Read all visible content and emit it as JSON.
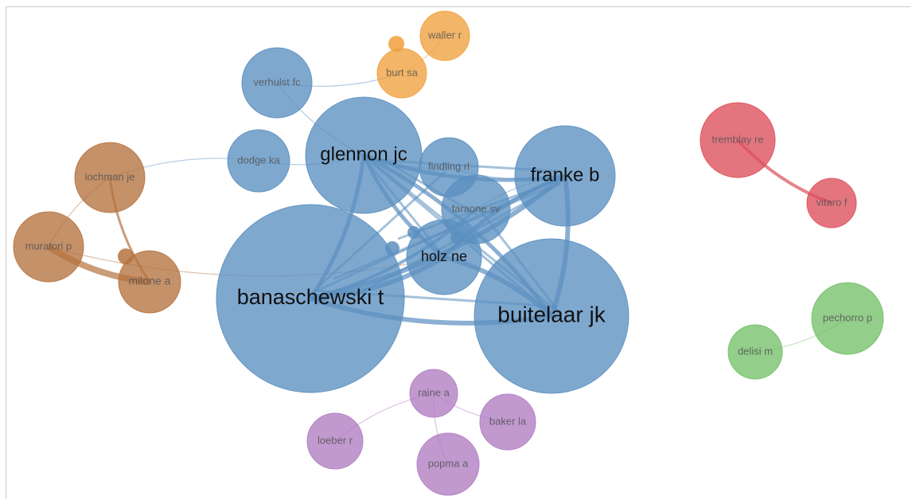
{
  "clusters": {
    "blue": "#5b8fc0",
    "orange": "#f0a03c",
    "brown": "#b5723f",
    "red": "#dd4e5a",
    "green": "#74c069",
    "purple": "#b07cc2"
  },
  "nodes": [
    {
      "id": "banaschewski-t",
      "label": "banaschewski t",
      "cluster": "blue"
    },
    {
      "id": "buitelaar-jk",
      "label": "buitelaar jk",
      "cluster": "blue"
    },
    {
      "id": "glennon-jc",
      "label": "glennon jc",
      "cluster": "blue"
    },
    {
      "id": "franke-b",
      "label": "franke b",
      "cluster": "blue"
    },
    {
      "id": "holz-ne",
      "label": "holz ne",
      "cluster": "blue"
    },
    {
      "id": "faraone-sv",
      "label": "faraone sv",
      "cluster": "blue"
    },
    {
      "id": "findling-rl",
      "label": "findling rl",
      "cluster": "blue"
    },
    {
      "id": "verhulst-fc",
      "label": "verhulst fc",
      "cluster": "blue"
    },
    {
      "id": "dodge-ka",
      "label": "dodge ka",
      "cluster": "blue"
    },
    {
      "id": "waller-r",
      "label": "waller r",
      "cluster": "orange"
    },
    {
      "id": "burt-sa",
      "label": "burt sa",
      "cluster": "orange"
    },
    {
      "id": "lochman-je",
      "label": "lochman je",
      "cluster": "brown"
    },
    {
      "id": "muratori-p",
      "label": "muratori p",
      "cluster": "brown"
    },
    {
      "id": "milone-a",
      "label": "milone a",
      "cluster": "brown"
    },
    {
      "id": "tremblay-re",
      "label": "tremblay re",
      "cluster": "red"
    },
    {
      "id": "vitaro-f",
      "label": "vitaro f",
      "cluster": "red"
    },
    {
      "id": "pechorro-p",
      "label": "pechorro p",
      "cluster": "green"
    },
    {
      "id": "delisi-m",
      "label": "delisi m",
      "cluster": "green"
    },
    {
      "id": "raine-a",
      "label": "raine a",
      "cluster": "purple"
    },
    {
      "id": "baker-la",
      "label": "baker la",
      "cluster": "purple"
    },
    {
      "id": "loeber-r",
      "label": "loeber r",
      "cluster": "purple"
    },
    {
      "id": "popma-a",
      "label": "popma a",
      "cluster": "purple"
    }
  ],
  "edges": [
    [
      "banaschewski-t",
      "buitelaar-jk"
    ],
    [
      "banaschewski-t",
      "glennon-jc"
    ],
    [
      "banaschewski-t",
      "franke-b"
    ],
    [
      "banaschewski-t",
      "holz-ne"
    ],
    [
      "banaschewski-t",
      "faraone-sv"
    ],
    [
      "buitelaar-jk",
      "glennon-jc"
    ],
    [
      "buitelaar-jk",
      "franke-b"
    ],
    [
      "buitelaar-jk",
      "holz-ne"
    ],
    [
      "glennon-jc",
      "franke-b"
    ],
    [
      "glennon-jc",
      "holz-ne"
    ],
    [
      "glennon-jc",
      "findling-rl"
    ],
    [
      "franke-b",
      "holz-ne"
    ],
    [
      "franke-b",
      "faraone-sv"
    ],
    [
      "findling-rl",
      "franke-b"
    ],
    [
      "verhulst-fc",
      "glennon-jc"
    ],
    [
      "verhulst-fc",
      "burt-sa"
    ],
    [
      "dodge-ka",
      "lochman-je"
    ],
    [
      "dodge-ka",
      "glennon-jc"
    ],
    [
      "burt-sa",
      "waller-r"
    ],
    [
      "lochman-je",
      "muratori-p"
    ],
    [
      "lochman-je",
      "milone-a"
    ],
    [
      "muratori-p",
      "milone-a"
    ],
    [
      "muratori-p",
      "holz-ne"
    ],
    [
      "tremblay-re",
      "vitaro-f"
    ],
    [
      "delisi-m",
      "pechorro-p"
    ],
    [
      "raine-a",
      "loeber-r"
    ],
    [
      "raine-a",
      "baker-la"
    ],
    [
      "raine-a",
      "popma-a"
    ]
  ]
}
